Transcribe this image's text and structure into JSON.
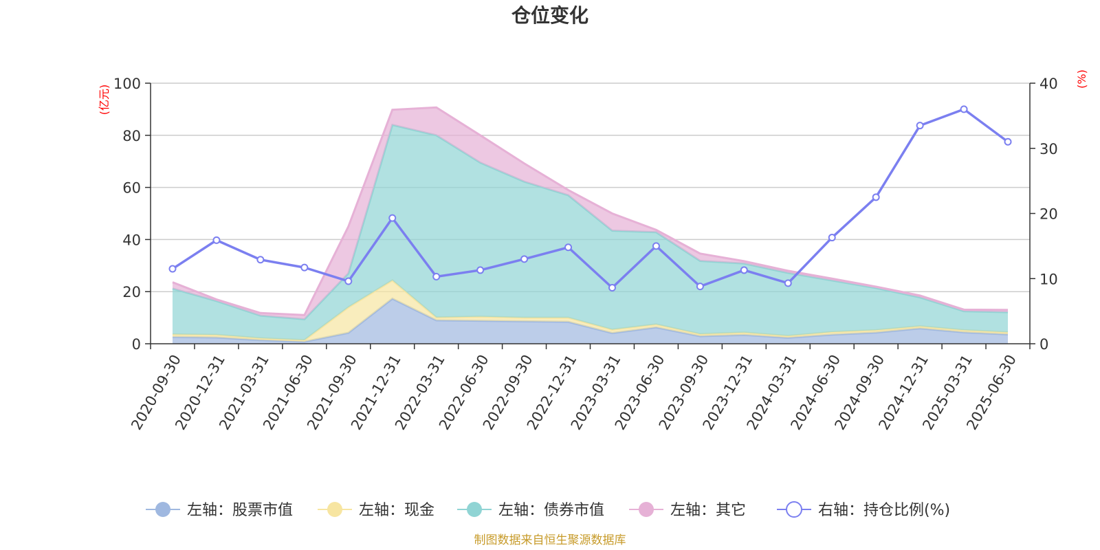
{
  "title": "仓位变化",
  "source_note": "制图数据来自恒生聚源数据库",
  "left_axis_unit": "(亿元)",
  "right_axis_unit": "(%)",
  "colors": {
    "stock": "#9fb8e0",
    "cash": "#f7e5a1",
    "bond": "#90d4d4",
    "other": "#e6b1d6",
    "ratio": "#7b7ff0",
    "grid": "#cccccc",
    "axis": "#333333"
  },
  "chart_data": {
    "type": "area",
    "title": "仓位变化",
    "categories": [
      "2020-09-30",
      "2020-12-31",
      "2021-03-31",
      "2021-06-30",
      "2021-09-30",
      "2021-12-31",
      "2022-03-31",
      "2022-06-30",
      "2022-09-30",
      "2022-12-31",
      "2023-03-31",
      "2023-06-30",
      "2023-09-30",
      "2023-12-31",
      "2024-03-31",
      "2024-06-30",
      "2024-09-30",
      "2024-12-31",
      "2025-03-31",
      "2025-06-30"
    ],
    "left_axis": {
      "label": "(亿元)",
      "ylim": [
        0,
        100
      ],
      "ticks": [
        0,
        20,
        40,
        60,
        80,
        100
      ]
    },
    "right_axis": {
      "label": "(%)",
      "ylim": [
        0,
        40
      ],
      "ticks": [
        0,
        10,
        20,
        30,
        40
      ]
    },
    "stacked": true,
    "grid": true,
    "legend_position": "bottom",
    "series": [
      {
        "name": "左轴：股票市值",
        "axis": "left",
        "type": "area",
        "color": "#9fb8e0",
        "values": [
          2.6,
          2.4,
          1.4,
          0.8,
          4.2,
          17.3,
          9.0,
          8.8,
          8.6,
          8.4,
          4.1,
          6.3,
          2.9,
          3.4,
          2.3,
          3.5,
          4.3,
          5.9,
          4.4,
          3.6
        ]
      },
      {
        "name": "左轴：现金",
        "axis": "left",
        "type": "area",
        "color": "#f7e5a1",
        "values": [
          1.0,
          1.0,
          0.7,
          0.6,
          9.8,
          7.0,
          1.1,
          1.6,
          1.4,
          1.6,
          1.3,
          1.1,
          0.8,
          0.9,
          0.7,
          1.0,
          0.9,
          0.8,
          0.8,
          0.8
        ]
      },
      {
        "name": "左轴：债券市值",
        "axis": "left",
        "type": "area",
        "color": "#90d4d4",
        "values": [
          17.6,
          13.0,
          8.7,
          8.0,
          13.0,
          59.7,
          69.9,
          59.1,
          52.2,
          47.0,
          38.0,
          35.4,
          28.1,
          26.5,
          24.2,
          19.8,
          16.2,
          11.1,
          7.3,
          7.7
        ]
      },
      {
        "name": "左轴：其它",
        "axis": "left",
        "type": "area",
        "color": "#e6b1d6",
        "values": [
          2.4,
          0.6,
          1.0,
          1.6,
          18.0,
          5.8,
          10.7,
          10.5,
          7.0,
          2.0,
          6.6,
          0.9,
          2.8,
          0.9,
          0.8,
          0.7,
          0.5,
          0.7,
          0.6,
          0.9
        ]
      },
      {
        "name": "右轴：持仓比例(%)",
        "axis": "right",
        "type": "line",
        "color": "#7b7ff0",
        "values": [
          11.5,
          15.9,
          12.9,
          11.7,
          9.6,
          19.3,
          10.3,
          11.3,
          13.0,
          14.8,
          8.6,
          15.0,
          8.8,
          11.3,
          9.3,
          16.3,
          22.5,
          33.5,
          36.0,
          31.0
        ]
      }
    ]
  }
}
